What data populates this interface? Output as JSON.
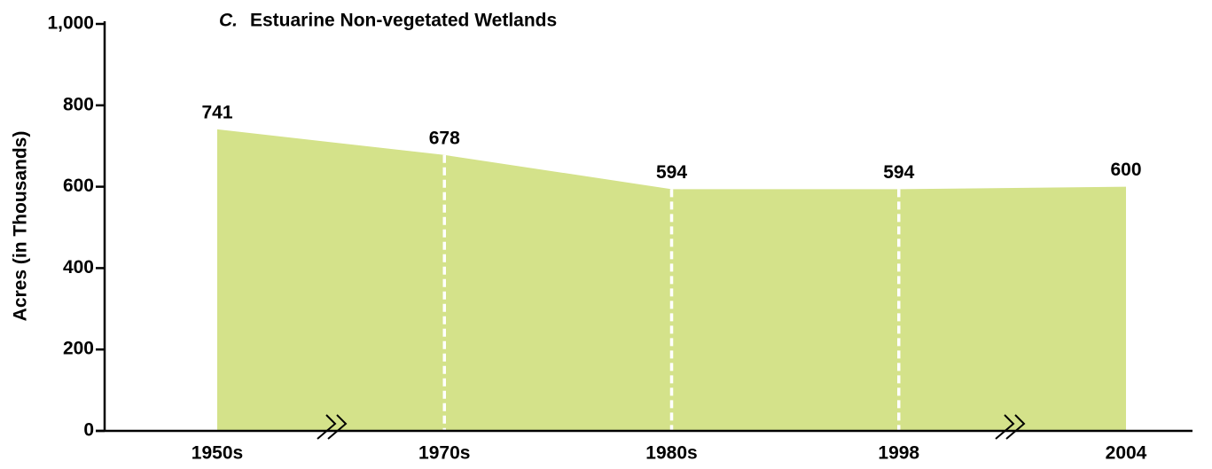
{
  "chart_data": {
    "type": "area",
    "panel_label": "C.",
    "title": "Estuarine Non-vegetated Wetlands",
    "y_label": "Acres (in Thousands)",
    "categories": [
      "1950s",
      "1970s",
      "1980s",
      "1998",
      "2004"
    ],
    "values": [
      741,
      678,
      594,
      594,
      600
    ],
    "color": "#d4e28a",
    "ylim": [
      0,
      1000
    ],
    "yticks": [
      0,
      200,
      400,
      600,
      800,
      {
        "value": 1000,
        "label": "1,000"
      }
    ]
  }
}
